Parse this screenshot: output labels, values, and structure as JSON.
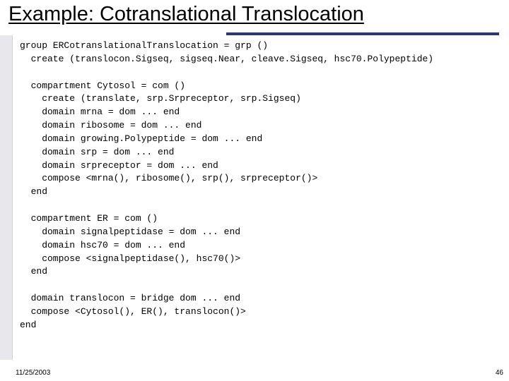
{
  "title": "Example: Cotranslational Translocation",
  "footer": {
    "date": "11/25/2003",
    "page": "46"
  },
  "colors": {
    "bg": "#ffffff",
    "accent_bar": "#2a3a6a",
    "left_panel": "#e8e8ec"
  },
  "code": {
    "line01": "group ERCotranslationalTranslocation = grp ()",
    "line02": "  create (translocon.Sigseq, sigseq.Near, cleave.Sigseq, hsc70.Polypeptide)",
    "line03": "",
    "line04": "  compartment Cytosol = com ()",
    "line05": "    create (translate, srp.Srpreceptor, srp.Sigseq)",
    "line06": "    domain mrna = dom ... end",
    "line07": "    domain ribosome = dom ... end",
    "line08": "    domain growing.Polypeptide = dom ... end",
    "line09": "    domain srp = dom ... end",
    "line10": "    domain srpreceptor = dom ... end",
    "line11": "    compose <mrna(), ribosome(), srp(), srpreceptor()>",
    "line12": "  end",
    "line13": "",
    "line14": "  compartment ER = com ()",
    "line15": "    domain signalpeptidase = dom ... end",
    "line16": "    domain hsc70 = dom ... end",
    "line17": "    compose <signalpeptidase(), hsc70()>",
    "line18": "  end",
    "line19": "",
    "line20": "  domain translocon = bridge dom ... end",
    "line21": "  compose <Cytosol(), ER(), translocon()>",
    "line22": "end"
  }
}
